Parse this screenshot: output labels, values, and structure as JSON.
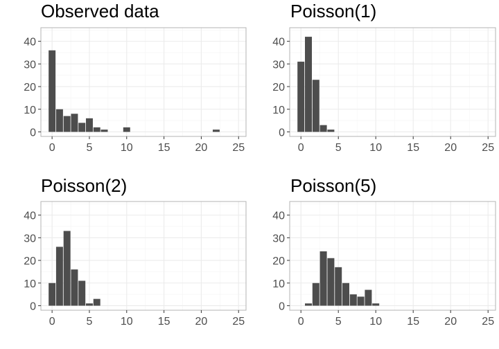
{
  "chart_data": [
    {
      "type": "bar",
      "title": "Observed data",
      "x": [
        0,
        1,
        2,
        3,
        4,
        5,
        6,
        7,
        8,
        9,
        10,
        11,
        12,
        13,
        14,
        15,
        16,
        17,
        18,
        19,
        20,
        21,
        22,
        23,
        24,
        25
      ],
      "values": [
        36,
        10,
        7,
        8,
        4,
        6,
        2,
        1,
        0,
        0,
        2,
        0,
        0,
        0,
        0,
        0,
        0,
        0,
        0,
        0,
        0,
        0,
        1,
        0,
        0,
        0
      ],
      "xticks": [
        "0",
        "5",
        "10",
        "15",
        "20",
        "25"
      ],
      "yticks": [
        "0",
        "10",
        "20",
        "30",
        "40"
      ],
      "xlim": [
        -1.5,
        26
      ],
      "ylim": [
        -2,
        46
      ],
      "color": "#4d4d4d",
      "grid": true
    },
    {
      "type": "bar",
      "title": "Poisson(1)",
      "x": [
        0,
        1,
        2,
        3,
        4
      ],
      "values": [
        31,
        42,
        23,
        3,
        1
      ],
      "xticks": [
        "0",
        "5",
        "10",
        "15",
        "20",
        "25"
      ],
      "yticks": [
        "0",
        "10",
        "20",
        "30",
        "40"
      ],
      "xlim": [
        -1.5,
        26
      ],
      "ylim": [
        -2,
        46
      ],
      "color": "#4d4d4d",
      "grid": true
    },
    {
      "type": "bar",
      "title": "Poisson(2)",
      "x": [
        0,
        1,
        2,
        3,
        4,
        5,
        6
      ],
      "values": [
        10,
        26,
        33,
        16,
        11,
        1,
        3
      ],
      "xticks": [
        "0",
        "5",
        "10",
        "15",
        "20",
        "25"
      ],
      "yticks": [
        "0",
        "10",
        "20",
        "30",
        "40"
      ],
      "xlim": [
        -1.5,
        26
      ],
      "ylim": [
        -2,
        46
      ],
      "color": "#4d4d4d",
      "grid": true
    },
    {
      "type": "bar",
      "title": "Poisson(5)",
      "x": [
        1,
        2,
        3,
        4,
        5,
        6,
        7,
        8,
        9,
        10
      ],
      "values": [
        1,
        10,
        24,
        21,
        17,
        10,
        5,
        4,
        7,
        1
      ],
      "xticks": [
        "0",
        "5",
        "10",
        "15",
        "20",
        "25"
      ],
      "yticks": [
        "0",
        "10",
        "20",
        "30",
        "40"
      ],
      "xlim": [
        -1.5,
        26
      ],
      "ylim": [
        -2,
        46
      ],
      "color": "#4d4d4d",
      "grid": true
    }
  ]
}
